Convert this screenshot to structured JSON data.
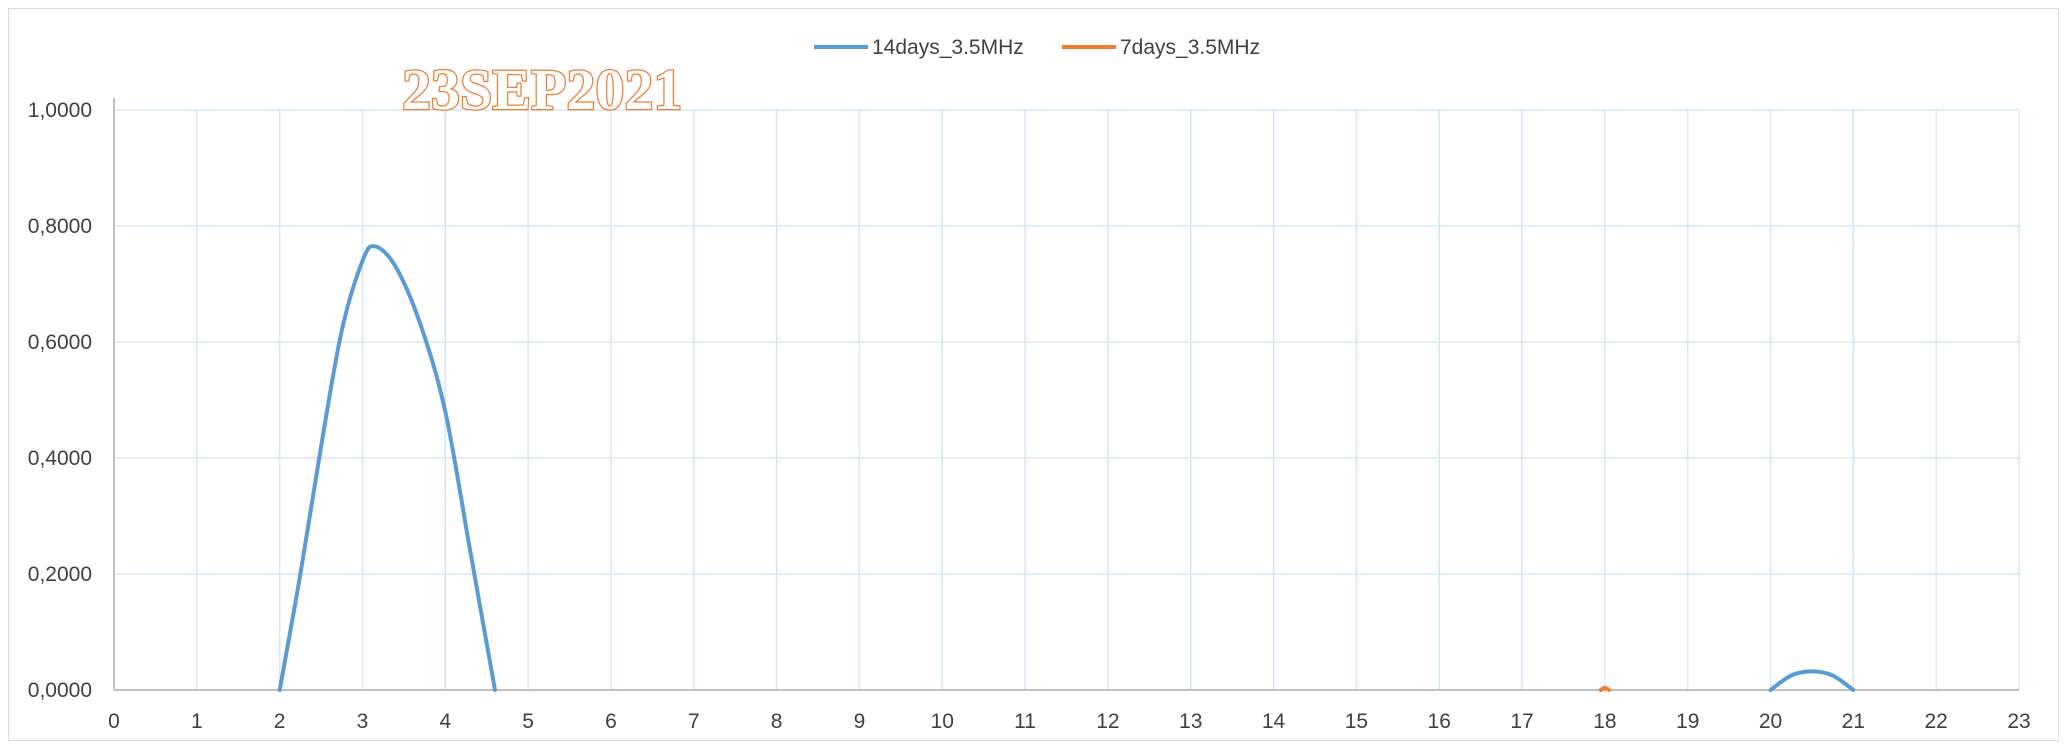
{
  "stamp_text": "23SEP2021",
  "chart_data": {
    "type": "line",
    "title": "",
    "xlabel": "",
    "ylabel": "",
    "xlim": [
      0,
      23
    ],
    "ylim": [
      0,
      1
    ],
    "x_ticks": [
      "0",
      "1",
      "2",
      "3",
      "4",
      "5",
      "6",
      "7",
      "8",
      "9",
      "10",
      "11",
      "12",
      "13",
      "14",
      "15",
      "16",
      "17",
      "18",
      "19",
      "20",
      "21",
      "22",
      "23"
    ],
    "y_ticks": [
      {
        "value": 0,
        "label": "0,0000"
      },
      {
        "value": 0.2,
        "label": "0,2000"
      },
      {
        "value": 0.4,
        "label": "0,4000"
      },
      {
        "value": 0.6,
        "label": "0,6000"
      },
      {
        "value": 0.8,
        "label": "0,8000"
      },
      {
        "value": 1.0,
        "label": "1,0000"
      }
    ],
    "grid": true,
    "legend_position": "top-center",
    "series": [
      {
        "name": "14days_3.5MHz",
        "color": "#5b9bd5",
        "points": [
          [
            2.0,
            0.0
          ],
          [
            2.25,
            0.2
          ],
          [
            2.5,
            0.42
          ],
          [
            2.75,
            0.62
          ],
          [
            3.0,
            0.74
          ],
          [
            3.15,
            0.765
          ],
          [
            3.4,
            0.73
          ],
          [
            3.7,
            0.63
          ],
          [
            4.0,
            0.48
          ],
          [
            4.3,
            0.24
          ],
          [
            4.6,
            0.0
          ]
        ]
      },
      {
        "name": "14days_3.5MHz",
        "color": "#5b9bd5",
        "points": [
          [
            20.0,
            0.0
          ],
          [
            20.25,
            0.025
          ],
          [
            20.5,
            0.032
          ],
          [
            20.75,
            0.025
          ],
          [
            21.0,
            0.0
          ]
        ]
      },
      {
        "name": "7days_3.5MHz",
        "color": "#ed7d31",
        "points": [
          [
            17.95,
            0.0
          ],
          [
            18.0,
            0.004
          ],
          [
            18.05,
            0.0
          ]
        ]
      }
    ],
    "legend": [
      {
        "name": "14days_3.5MHz",
        "color": "#5b9bd5"
      },
      {
        "name": "7days_3.5MHz",
        "color": "#ed7d31"
      }
    ]
  }
}
